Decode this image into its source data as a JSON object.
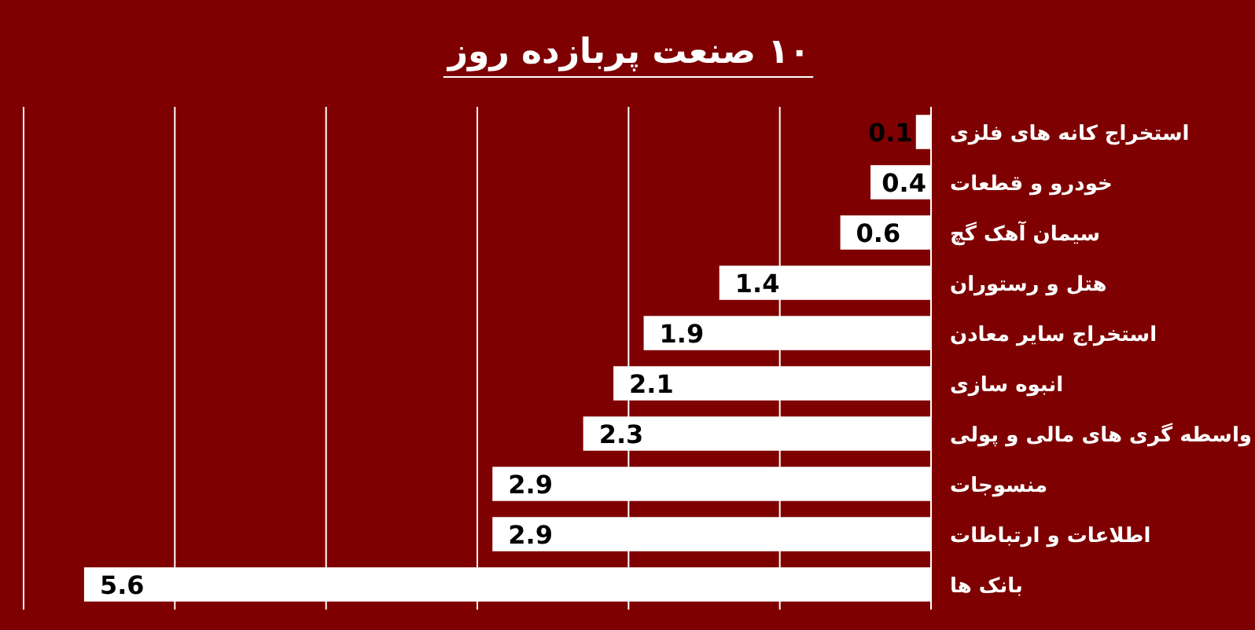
{
  "chart_data": {
    "type": "bar",
    "orientation": "horizontal",
    "title": "۱۰ صنعت پربازده روز",
    "categories": [
      "استخراج کانه های فلزی",
      "خودرو و قطعات",
      "سیمان آهک گچ",
      "هتل و رستوران",
      "استخراج سایر معادن",
      "انبوه سازی",
      "واسطه گری های مالی و پولی",
      "منسوجات",
      "اطلاعات و ارتباطات",
      "بانک ها"
    ],
    "values": [
      0.1,
      0.4,
      0.6,
      1.4,
      1.9,
      2.1,
      2.3,
      2.9,
      2.9,
      5.6
    ],
    "color": "#ffffff",
    "xlim": [
      6,
      0
    ],
    "xticks": [
      {
        "value": 0,
        "label": null
      },
      {
        "value": 1,
        "label": null
      },
      {
        "value": 2,
        "label": null
      },
      {
        "value": 3,
        "label": null
      },
      {
        "value": 4,
        "label": null
      },
      {
        "value": 5,
        "label": null
      },
      {
        "value": 6,
        "label": null
      }
    ],
    "grid": "x",
    "tick_labels": "y",
    "data_labels": true
  }
}
